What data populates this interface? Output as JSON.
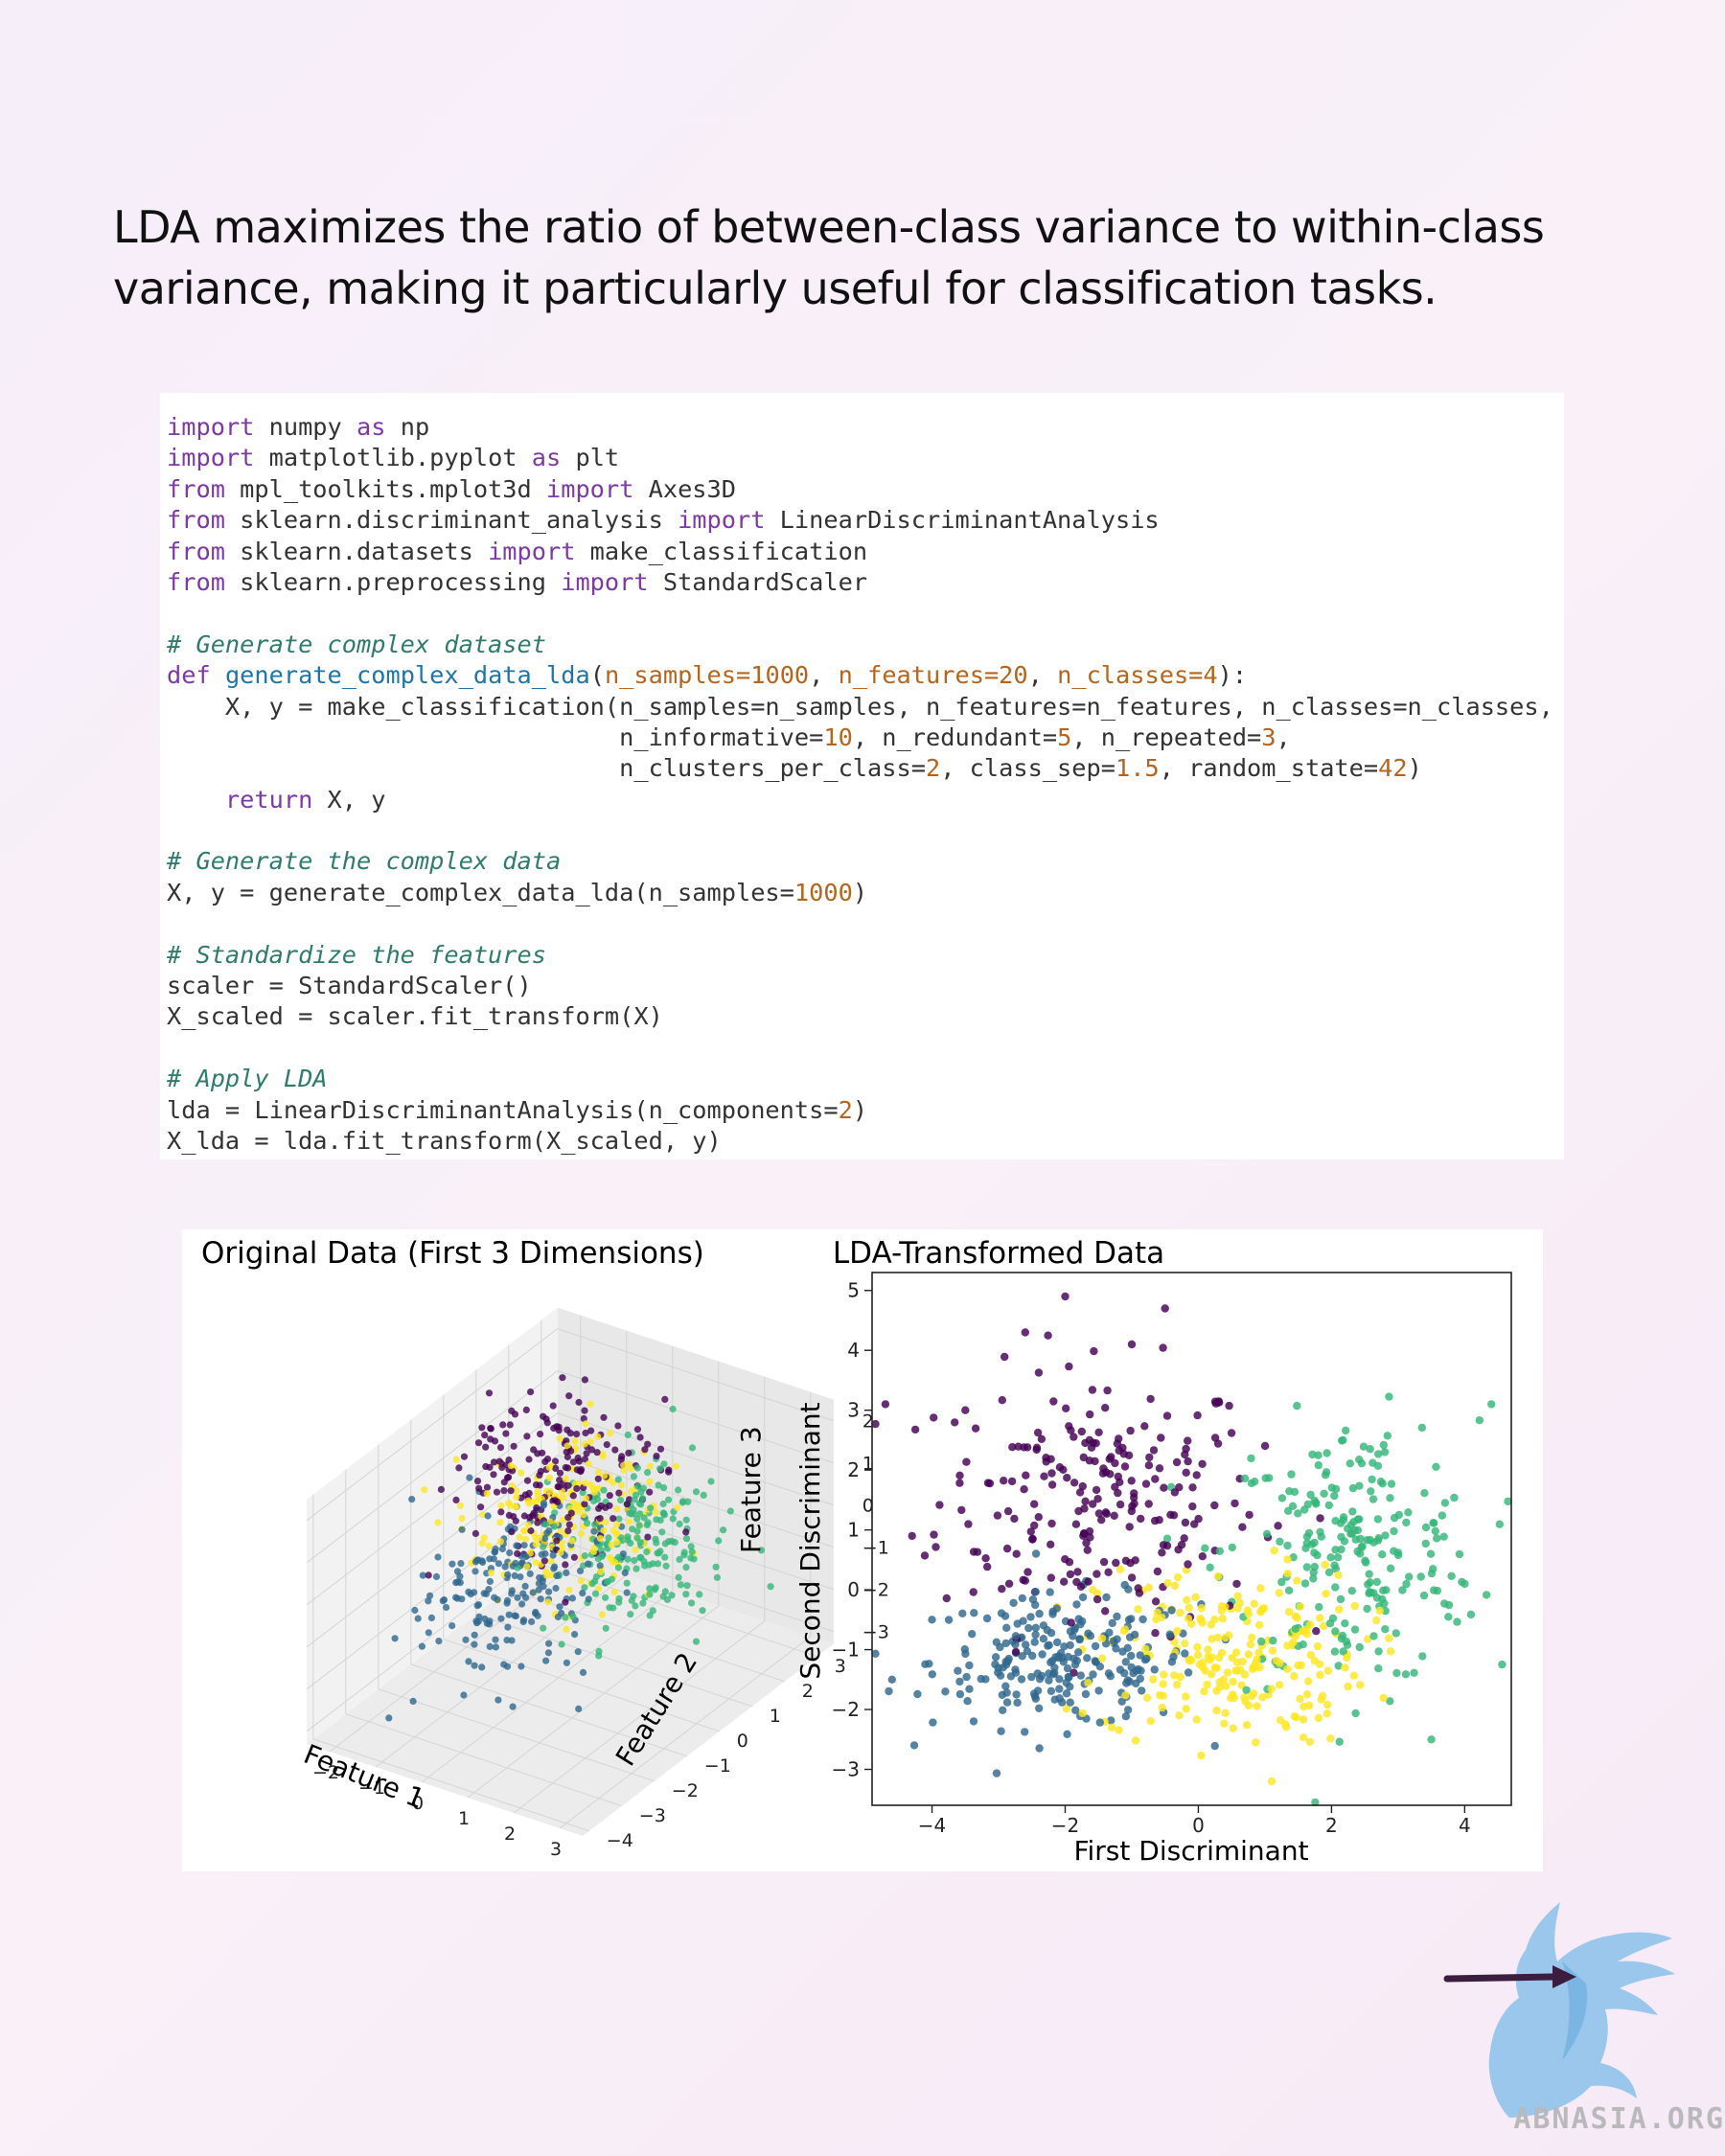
{
  "headline": "LDA maximizes the ratio of between-class variance to within-class variance, making it particularly useful for classification tasks.",
  "code": {
    "lines": [
      [
        [
          "kw",
          "import"
        ],
        [
          "t",
          " numpy "
        ],
        [
          "kw",
          "as"
        ],
        [
          "t",
          " np"
        ]
      ],
      [
        [
          "kw",
          "import"
        ],
        [
          "t",
          " matplotlib.pyplot "
        ],
        [
          "kw",
          "as"
        ],
        [
          "t",
          " plt"
        ]
      ],
      [
        [
          "kw",
          "from"
        ],
        [
          "t",
          " mpl_toolkits.mplot3d "
        ],
        [
          "kw",
          "import"
        ],
        [
          "t",
          " Axes3D"
        ]
      ],
      [
        [
          "kw",
          "from"
        ],
        [
          "t",
          " sklearn.discriminant_analysis "
        ],
        [
          "kw",
          "import"
        ],
        [
          "t",
          " LinearDiscriminantAnalysis"
        ]
      ],
      [
        [
          "kw",
          "from"
        ],
        [
          "t",
          " sklearn.datasets "
        ],
        [
          "kw",
          "import"
        ],
        [
          "t",
          " make_classification"
        ]
      ],
      [
        [
          "kw",
          "from"
        ],
        [
          "t",
          " sklearn.preprocessing "
        ],
        [
          "kw",
          "import"
        ],
        [
          "t",
          " StandardScaler"
        ]
      ],
      [],
      [
        [
          "cm",
          "# Generate complex dataset"
        ]
      ],
      [
        [
          "kw",
          "def"
        ],
        [
          "t",
          " "
        ],
        [
          "fn",
          "generate_complex_data_lda"
        ],
        [
          "t",
          "("
        ],
        [
          "num",
          "n_samples=1000"
        ],
        [
          "t",
          ", "
        ],
        [
          "num",
          "n_features=20"
        ],
        [
          "t",
          ", "
        ],
        [
          "num",
          "n_classes=4"
        ],
        [
          "t",
          "):"
        ]
      ],
      [
        [
          "t",
          "    X, y = make_classification(n_samples=n_samples, n_features=n_features, n_classes=n_classes,"
        ]
      ],
      [
        [
          "t",
          "                               n_informative="
        ],
        [
          "num",
          "10"
        ],
        [
          "t",
          ", n_redundant="
        ],
        [
          "num",
          "5"
        ],
        [
          "t",
          ", n_repeated="
        ],
        [
          "num",
          "3"
        ],
        [
          "t",
          ","
        ]
      ],
      [
        [
          "t",
          "                               n_clusters_per_class="
        ],
        [
          "num",
          "2"
        ],
        [
          "t",
          ", class_sep="
        ],
        [
          "num",
          "1.5"
        ],
        [
          "t",
          ", random_state="
        ],
        [
          "num",
          "42"
        ],
        [
          "t",
          ")"
        ]
      ],
      [
        [
          "t",
          "    "
        ],
        [
          "kw",
          "return"
        ],
        [
          "t",
          " X, y"
        ]
      ],
      [],
      [
        [
          "cm",
          "# Generate the complex data"
        ]
      ],
      [
        [
          "t",
          "X, y = generate_complex_data_lda(n_samples="
        ],
        [
          "num",
          "1000"
        ],
        [
          "t",
          ")"
        ]
      ],
      [],
      [
        [
          "cm",
          "# Standardize the features"
        ]
      ],
      [
        [
          "t",
          "scaler = StandardScaler()"
        ]
      ],
      [
        [
          "t",
          "X_scaled = scaler.fit_transform(X)"
        ]
      ],
      [],
      [
        [
          "cm",
          "# Apply LDA"
        ]
      ],
      [
        [
          "t",
          "lda = LinearDiscriminantAnalysis(n_components="
        ],
        [
          "num",
          "2"
        ],
        [
          "t",
          ")"
        ]
      ],
      [
        [
          "t",
          "X_lda = lda.fit_transform(X_scaled, y)"
        ]
      ]
    ]
  },
  "chart_data": [
    {
      "type": "scatter",
      "projection": "3d",
      "title": "Original Data (First 3 Dimensions)",
      "xlabel": "Feature 1",
      "ylabel": "Feature 2",
      "zlabel": "Feature 3",
      "xticks": [
        "−2",
        "−1",
        "0",
        "1",
        "2",
        "3"
      ],
      "yticks": [
        "3",
        "2",
        "1",
        "0",
        "−1",
        "−2",
        "−3",
        "−4"
      ],
      "zticks": [
        "2",
        "1",
        "0",
        "−1",
        "−2",
        "−3"
      ],
      "xlim": [
        -2.5,
        3.5
      ],
      "ylim": [
        -4.2,
        3.5
      ],
      "zlim": [
        -3.3,
        2.5
      ],
      "classes": [
        0,
        1,
        2,
        3
      ],
      "class_colors": [
        "#440154",
        "#31688e",
        "#35b779",
        "#fde725"
      ],
      "series": [
        {
          "class": 0,
          "center": [
            -0.6,
            0.6,
            0.9
          ],
          "spread": [
            0.8,
            0.9,
            0.8
          ]
        },
        {
          "class": 1,
          "center": [
            -0.5,
            -0.8,
            -0.9
          ],
          "spread": [
            0.8,
            1.0,
            0.8
          ]
        },
        {
          "class": 2,
          "center": [
            1.2,
            0.8,
            -0.1
          ],
          "spread": [
            0.7,
            0.9,
            0.8
          ]
        },
        {
          "class": 3,
          "center": [
            -0.2,
            0.3,
            0.2
          ],
          "spread": [
            0.8,
            1.0,
            0.8
          ]
        }
      ]
    },
    {
      "type": "scatter",
      "title": "LDA-Transformed Data",
      "xlabel": "First Discriminant",
      "ylabel": "Second Discriminant",
      "xlim": [
        -4.9,
        4.7
      ],
      "ylim": [
        -3.6,
        5.3
      ],
      "xticks": [
        -4,
        -2,
        0,
        2,
        4
      ],
      "xticklabels": [
        "−4",
        "−2",
        "0",
        "2",
        "4"
      ],
      "yticks": [
        -3,
        -2,
        -1,
        0,
        1,
        2,
        3,
        4,
        5
      ],
      "yticklabels": [
        "−3",
        "−2",
        "−1",
        "0",
        "1",
        "2",
        "3",
        "4",
        "5"
      ],
      "grid": false,
      "classes": [
        0,
        1,
        2,
        3
      ],
      "class_colors": [
        "#440154",
        "#31688e",
        "#35b779",
        "#fde725"
      ],
      "series": [
        {
          "class": 0,
          "center": [
            -1.5,
            1.5
          ],
          "spread": [
            1.2,
            1.1
          ],
          "outliers": [
            [
              -4.7,
              3.1
            ],
            [
              -2.0,
              4.9
            ],
            [
              -0.5,
              4.7
            ],
            [
              -2.6,
              4.3
            ],
            [
              -1.0,
              4.1
            ],
            [
              -3.5,
              3.0
            ],
            [
              -4.3,
              0.9
            ]
          ]
        },
        {
          "class": 1,
          "center": [
            -2.0,
            -1.2
          ],
          "spread": [
            1.0,
            0.55
          ],
          "outliers": [
            [
              -4.6,
              -1.5
            ],
            [
              -3.8,
              -1.7
            ],
            [
              -4.0,
              -0.5
            ]
          ]
        },
        {
          "class": 2,
          "center": [
            2.3,
            0.6
          ],
          "spread": [
            0.95,
            1.1
          ],
          "outliers": [
            [
              4.4,
              3.1
            ],
            [
              3.5,
              -2.5
            ],
            [
              2.8,
              2.3
            ],
            [
              4.0,
              0.1
            ]
          ]
        },
        {
          "class": 3,
          "center": [
            0.5,
            -1.1
          ],
          "spread": [
            1.0,
            0.75
          ],
          "outliers": [
            [
              1.1,
              -3.2
            ],
            [
              2.2,
              -1.3
            ],
            [
              -1.3,
              -2.3
            ]
          ]
        }
      ]
    }
  ],
  "brand": {
    "watermark": "ABNASIA.ORG",
    "colors": {
      "bird": "#8fc3ea",
      "arrow": "#3a1d3f",
      "text": "#b9b9bb"
    }
  }
}
